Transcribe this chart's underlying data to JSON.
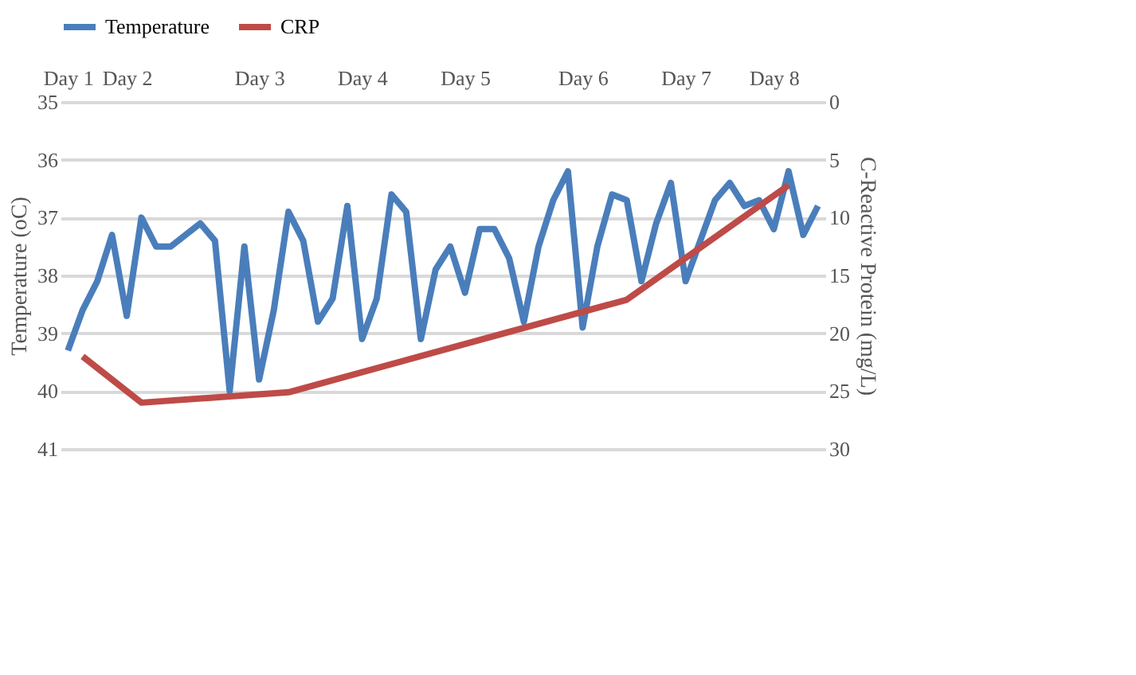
{
  "chart_data": {
    "type": "line",
    "categories": [
      "Day 1",
      null,
      null,
      null,
      "Day 2",
      null,
      null,
      null,
      null,
      null,
      null,
      null,
      null,
      "Day 3",
      null,
      null,
      null,
      null,
      null,
      null,
      "Day 4",
      null,
      null,
      null,
      null,
      null,
      null,
      "Day 5",
      null,
      null,
      null,
      null,
      null,
      null,
      null,
      "Day 6",
      null,
      null,
      null,
      null,
      null,
      null,
      "Day 7",
      null,
      null,
      null,
      null,
      null,
      "Day 8",
      null,
      null,
      null
    ],
    "series": [
      {
        "name": "Temperature",
        "color": "#4a7ebb",
        "values": [
          39.3,
          38.6,
          38.1,
          37.3,
          38.7,
          37.0,
          37.5,
          37.5,
          37.3,
          37.1,
          37.4,
          40.0,
          37.5,
          39.8,
          38.6,
          36.9,
          37.4,
          38.8,
          38.4,
          36.8,
          39.1,
          38.4,
          36.6,
          36.9,
          39.1,
          37.9,
          37.5,
          38.3,
          37.2,
          37.2,
          37.7,
          38.8,
          37.5,
          36.7,
          36.2,
          38.9,
          37.5,
          36.6,
          36.7,
          38.1,
          37.1,
          36.4,
          38.1,
          37.4,
          36.7,
          36.4,
          36.8,
          36.7,
          37.2,
          36.2,
          37.3,
          36.8
        ]
      },
      {
        "name": "CRP",
        "color": "#be4b48",
        "axis": "y2",
        "values": [
          null,
          22.0,
          null,
          null,
          null,
          26.0,
          null,
          null,
          null,
          null,
          null,
          null,
          null,
          null,
          null,
          25.1,
          null,
          null,
          null,
          null,
          null,
          null,
          null,
          null,
          null,
          null,
          null,
          null,
          null,
          null,
          null,
          null,
          null,
          null,
          null,
          null,
          null,
          null,
          17.1,
          null,
          null,
          null,
          null,
          null,
          null,
          null,
          null,
          null,
          null,
          7.2,
          null,
          null
        ]
      }
    ],
    "ylabel": "Temperature (oC)",
    "y2label": "C-Reactive Protein (mg/L)",
    "ylim": [
      41,
      35
    ],
    "yticks": [
      35,
      36,
      37,
      38,
      39,
      40,
      41
    ],
    "y2lim": [
      30,
      0
    ],
    "y2ticks": [
      0,
      5,
      10,
      15,
      20,
      25,
      30
    ],
    "grid": "y",
    "legend": "top",
    "line_style": "solid",
    "marker": "none"
  }
}
